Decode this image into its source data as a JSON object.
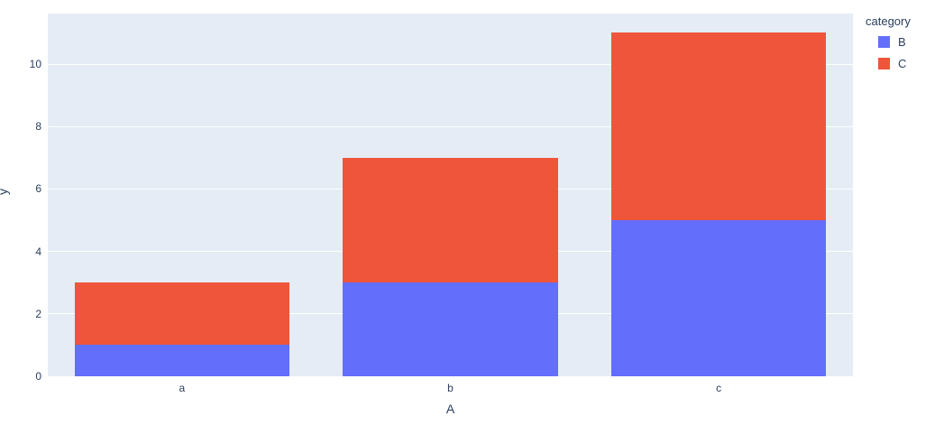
{
  "chart_data": {
    "type": "bar",
    "stacked": true,
    "orientation": "vertical",
    "categories": [
      "a",
      "b",
      "c"
    ],
    "series": [
      {
        "name": "B",
        "color": "#636efa",
        "values": [
          1,
          3,
          5
        ]
      },
      {
        "name": "C",
        "color": "#ef553b",
        "values": [
          2,
          4,
          6
        ]
      }
    ],
    "title": "",
    "xlabel": "A",
    "ylabel": "y",
    "yticks": [
      0,
      2,
      4,
      6,
      8,
      10
    ],
    "ylim": [
      0,
      11.62
    ],
    "grid": true,
    "legend": {
      "title": "category",
      "position": "right"
    },
    "colors": {
      "plot_bg": "#e5ecf6",
      "paper_bg": "#ffffff",
      "grid": "#ffffff",
      "text": "#2a3f5f"
    },
    "bar_width_fraction": 0.8
  }
}
